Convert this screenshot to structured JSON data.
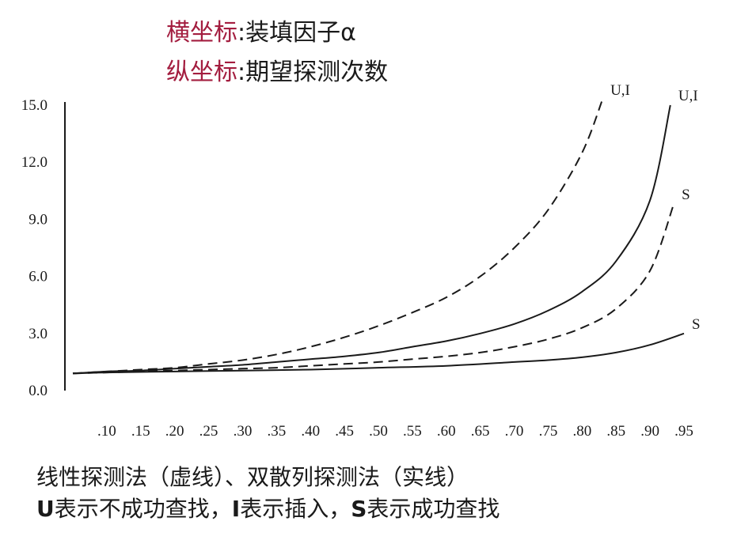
{
  "titles": {
    "x_prefix": "横坐标",
    "x_text": "装填因子α",
    "y_prefix": "纵坐标",
    "y_text": "期望探测次数"
  },
  "captions": {
    "line1": "线性探测法（虚线）、双散列探测法（实线）",
    "u_letter": "U",
    "u_text": "表示不成功查找，",
    "i_letter": "I",
    "i_text": "表示插入，",
    "s_letter": "S",
    "s_text": "表示成功查找"
  },
  "colors": {
    "accent": "#a31d3f",
    "ink": "#1a1a1a"
  },
  "chart_data": {
    "type": "line",
    "xlim": [
      0.05,
      0.95
    ],
    "ylim": [
      0,
      15
    ],
    "y_ticks": [
      "0.0",
      "3.0",
      "6.0",
      "9.0",
      "12.0",
      "15.0"
    ],
    "x_ticks": [
      ".10",
      ".15",
      ".20",
      ".25",
      ".30",
      ".35",
      ".40",
      ".45",
      ".50",
      ".55",
      ".60",
      ".65",
      ".70",
      ".75",
      ".80",
      ".85",
      ".90",
      ".95"
    ],
    "series": [
      {
        "name": "U,I",
        "style": "dashed",
        "x": [
          0.05,
          0.1,
          0.15,
          0.2,
          0.25,
          0.3,
          0.35,
          0.4,
          0.45,
          0.5,
          0.55,
          0.6,
          0.65,
          0.7,
          0.75,
          0.8,
          0.83
        ],
        "y": [
          0.9,
          1.0,
          1.1,
          1.2,
          1.4,
          1.6,
          1.9,
          2.3,
          2.8,
          3.4,
          4.1,
          4.9,
          6.0,
          7.5,
          9.5,
          12.5,
          15.3
        ]
      },
      {
        "name": "U,I",
        "style": "solid",
        "x": [
          0.05,
          0.1,
          0.15,
          0.2,
          0.25,
          0.3,
          0.35,
          0.4,
          0.45,
          0.5,
          0.55,
          0.6,
          0.65,
          0.7,
          0.75,
          0.8,
          0.85,
          0.9,
          0.93
        ],
        "y": [
          0.9,
          1.0,
          1.05,
          1.15,
          1.25,
          1.35,
          1.5,
          1.65,
          1.8,
          2.0,
          2.3,
          2.6,
          3.0,
          3.5,
          4.2,
          5.2,
          6.8,
          10.0,
          15.0
        ]
      },
      {
        "name": "S",
        "style": "dashed",
        "x": [
          0.05,
          0.1,
          0.15,
          0.2,
          0.25,
          0.3,
          0.35,
          0.4,
          0.45,
          0.5,
          0.55,
          0.6,
          0.65,
          0.7,
          0.75,
          0.8,
          0.85,
          0.9,
          0.935
        ],
        "y": [
          0.9,
          0.95,
          1.0,
          1.05,
          1.1,
          1.15,
          1.2,
          1.3,
          1.4,
          1.5,
          1.65,
          1.8,
          2.0,
          2.3,
          2.7,
          3.3,
          4.3,
          6.3,
          9.8
        ]
      },
      {
        "name": "S",
        "style": "solid",
        "x": [
          0.05,
          0.1,
          0.2,
          0.3,
          0.4,
          0.5,
          0.6,
          0.7,
          0.75,
          0.8,
          0.85,
          0.9,
          0.95
        ],
        "y": [
          0.9,
          0.95,
          1.0,
          1.05,
          1.1,
          1.2,
          1.3,
          1.5,
          1.6,
          1.75,
          2.0,
          2.4,
          3.0
        ]
      }
    ]
  }
}
